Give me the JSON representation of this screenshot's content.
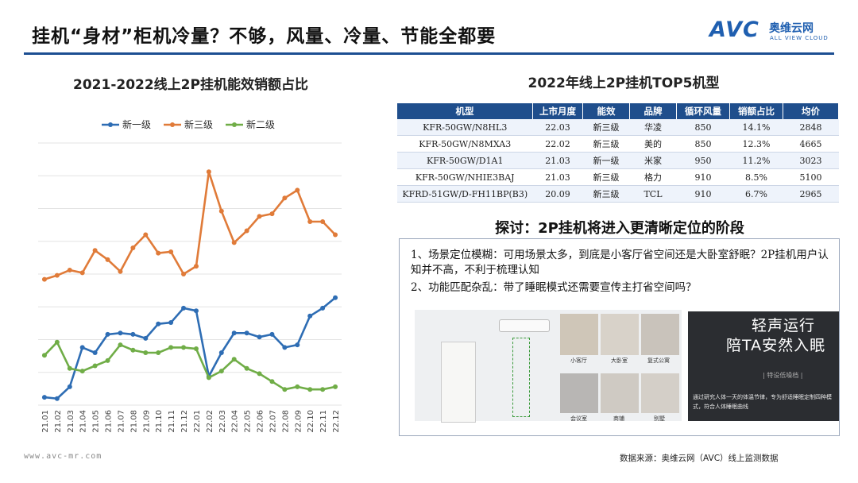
{
  "header": {
    "title": "挂机“身材”柜机冷量？不够，风量、冷量、节能全都要",
    "logo_text": "AVC",
    "logo_cn": "奥维云网",
    "logo_en": "ALL VIEW CLOUD"
  },
  "chart_data": {
    "type": "line",
    "title": "2021-2022线上2P挂机能效销额占比",
    "categories": [
      "21.01",
      "21.02",
      "21.03",
      "21.04",
      "21.05",
      "21.06",
      "21.07",
      "21.08",
      "21.09",
      "21.10",
      "21.11",
      "21.12",
      "22.01",
      "22.02",
      "22.03",
      "22.04",
      "22.05",
      "22.06",
      "22.07",
      "22.08",
      "22.09",
      "22.10",
      "22.11",
      "22.12"
    ],
    "grid": true,
    "legend_position": "top",
    "series": [
      {
        "name": "新一级",
        "color": "#2e6db4",
        "values": [
          3,
          2.5,
          7,
          22,
          20,
          27,
          27.5,
          27,
          25.5,
          31,
          31.5,
          37,
          36,
          11,
          20,
          27.5,
          27.5,
          26,
          27,
          22,
          23,
          34,
          37,
          41
        ]
      },
      {
        "name": "新三级",
        "color": "#e07b39",
        "values": [
          48,
          49.5,
          51.5,
          50.5,
          59,
          55.5,
          51,
          60,
          65,
          58,
          58.5,
          50,
          53,
          89,
          74,
          62,
          66.5,
          72,
          73,
          79,
          82,
          70,
          70,
          65
        ]
      },
      {
        "name": "新二级",
        "color": "#70ad47",
        "values": [
          19,
          24,
          14,
          13,
          15,
          17,
          23,
          21,
          20,
          20,
          22,
          22,
          21.5,
          10.5,
          13,
          17.5,
          14,
          12,
          9,
          6,
          7,
          6,
          6,
          7
        ]
      }
    ]
  },
  "table": {
    "title": "2022年线上2P挂机TOP5机型",
    "headers": [
      "机型",
      "上市月度",
      "能效",
      "品牌",
      "循环风量",
      "销额占比",
      "均价"
    ],
    "rows": [
      [
        "KFR-50GW/N8HL3",
        "22.03",
        "新三级",
        "华凌",
        "850",
        "14.1%",
        "2848"
      ],
      [
        "KFR-50GW/N8MXA3",
        "22.02",
        "新三级",
        "美的",
        "850",
        "12.3%",
        "4665"
      ],
      [
        "KFR-50GW/D1A1",
        "21.03",
        "新一级",
        "米家",
        "950",
        "11.2%",
        "3023"
      ],
      [
        "KFR-50GW/NHIE3BAJ",
        "21.03",
        "新三级",
        "格力",
        "910",
        "8.5%",
        "5100"
      ],
      [
        "KFRD-51GW/D-FH11BP(B3)",
        "20.09",
        "新三级",
        "TCL",
        "910",
        "6.7%",
        "2965"
      ]
    ]
  },
  "discussion": {
    "title": "探讨：2P挂机将进入更清晰定位的阶段",
    "point1": "1、场景定位模糊：可用场景太多，到底是小客厅省空间还是大卧室舒眠？2P挂机用户认知并不高，不利于梳理认知",
    "point2": "2、功能匹配杂乱：带了睡眠模式还需要宣传主打省空间吗？"
  },
  "promo": {
    "line1": "轻声运行",
    "line2": "陪TA安然入眠",
    "tag": "| 特设低噪档 |",
    "note": "通过研究人体一天的体温节律，专为舒适睡眠定制四种模式，符合人体睡眠曲线",
    "room_labels": [
      "小客厅",
      "大卧室",
      "复式公寓",
      "会议室",
      "商铺",
      "别墅"
    ]
  },
  "footer": {
    "website": "www.avc-mr.com",
    "source": "数据来源：奥维云网（AVC）线上监测数据"
  }
}
